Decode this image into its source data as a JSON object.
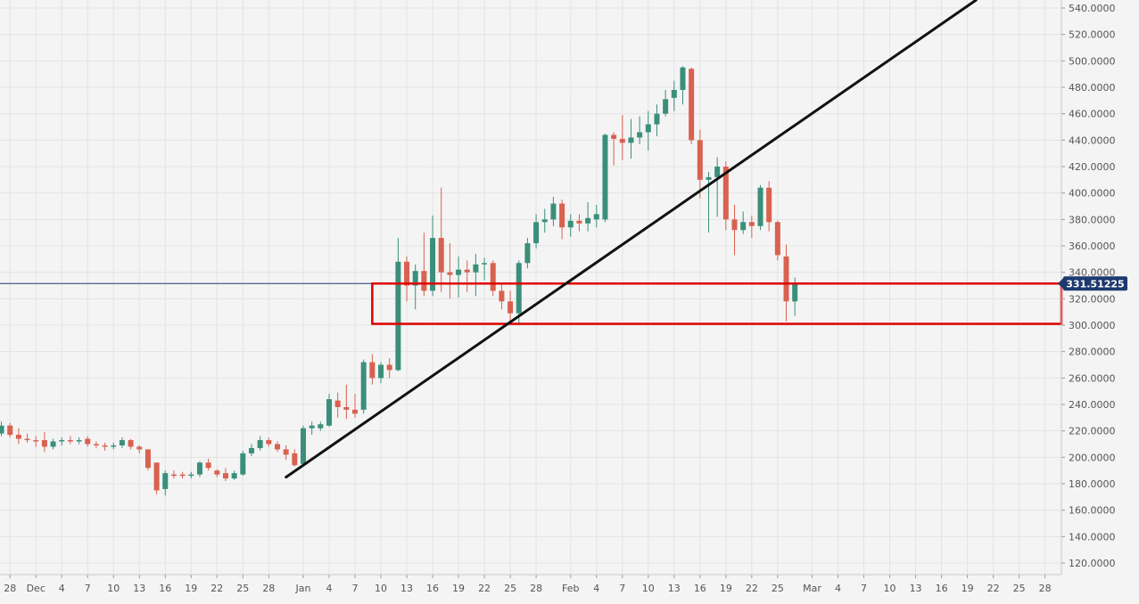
{
  "chart_data": {
    "type": "candlestick",
    "title": "",
    "xlabel": "",
    "ylabel": "",
    "ylim": [
      113,
      546
    ],
    "y_tick_values": [
      120,
      140,
      160,
      180,
      200,
      220,
      240,
      260,
      280,
      300,
      320,
      340,
      360,
      380,
      400,
      420,
      440,
      460,
      480,
      500,
      520,
      540
    ],
    "y_tick_labels": [
      "120.0000",
      "140.0000",
      "160.0000",
      "180.0000",
      "200.0000",
      "220.0000",
      "240.0000",
      "260.0000",
      "280.0000",
      "300.0000",
      "320.0000",
      "340.0000",
      "360.0000",
      "380.0000",
      "400.0000",
      "420.0000",
      "440.0000",
      "460.0000",
      "480.0000",
      "500.0000",
      "520.0000",
      "540.0000"
    ],
    "x_ticks": [
      {
        "date": "2020-11-28",
        "label": "28"
      },
      {
        "date": "2020-12-01",
        "label": "Dec"
      },
      {
        "date": "2020-12-04",
        "label": "4"
      },
      {
        "date": "2020-12-07",
        "label": "7"
      },
      {
        "date": "2020-12-10",
        "label": "10"
      },
      {
        "date": "2020-12-13",
        "label": "13"
      },
      {
        "date": "2020-12-16",
        "label": "16"
      },
      {
        "date": "2020-12-19",
        "label": "19"
      },
      {
        "date": "2020-12-22",
        "label": "22"
      },
      {
        "date": "2020-12-25",
        "label": "25"
      },
      {
        "date": "2020-12-28",
        "label": "28"
      },
      {
        "date": "2021-01-01",
        "label": "Jan"
      },
      {
        "date": "2021-01-04",
        "label": "4"
      },
      {
        "date": "2021-01-07",
        "label": "7"
      },
      {
        "date": "2021-01-10",
        "label": "10"
      },
      {
        "date": "2021-01-13",
        "label": "13"
      },
      {
        "date": "2021-01-16",
        "label": "16"
      },
      {
        "date": "2021-01-19",
        "label": "19"
      },
      {
        "date": "2021-01-22",
        "label": "22"
      },
      {
        "date": "2021-01-25",
        "label": "25"
      },
      {
        "date": "2021-01-28",
        "label": "28"
      },
      {
        "date": "2021-02-01",
        "label": "Feb"
      },
      {
        "date": "2021-02-04",
        "label": "4"
      },
      {
        "date": "2021-02-07",
        "label": "7"
      },
      {
        "date": "2021-02-10",
        "label": "10"
      },
      {
        "date": "2021-02-13",
        "label": "13"
      },
      {
        "date": "2021-02-16",
        "label": "16"
      },
      {
        "date": "2021-02-19",
        "label": "19"
      },
      {
        "date": "2021-02-22",
        "label": "22"
      },
      {
        "date": "2021-02-25",
        "label": "25"
      },
      {
        "date": "2021-03-01",
        "label": "Mar"
      },
      {
        "date": "2021-03-04",
        "label": "4"
      },
      {
        "date": "2021-03-07",
        "label": "7"
      },
      {
        "date": "2021-03-10",
        "label": "10"
      },
      {
        "date": "2021-03-13",
        "label": "13"
      },
      {
        "date": "2021-03-16",
        "label": "16"
      },
      {
        "date": "2021-03-19",
        "label": "19"
      },
      {
        "date": "2021-03-22",
        "label": "22"
      },
      {
        "date": "2021-03-25",
        "label": "25"
      },
      {
        "date": "2021-03-28",
        "label": "28"
      }
    ],
    "candles": [
      {
        "date": "2020-11-25",
        "open": 212,
        "high": 226,
        "low": 203,
        "close": 222
      },
      {
        "date": "2020-11-26",
        "open": 220,
        "high": 224,
        "low": 215,
        "close": 219
      },
      {
        "date": "2020-11-27",
        "open": 218,
        "high": 227,
        "low": 216,
        "close": 224
      },
      {
        "date": "2020-11-28",
        "open": 224,
        "high": 226,
        "low": 215,
        "close": 217
      },
      {
        "date": "2020-11-29",
        "open": 217,
        "high": 222,
        "low": 210,
        "close": 214
      },
      {
        "date": "2020-11-30",
        "open": 214,
        "high": 218,
        "low": 211,
        "close": 213
      },
      {
        "date": "2020-12-01",
        "open": 213,
        "high": 216,
        "low": 208,
        "close": 212
      },
      {
        "date": "2020-12-02",
        "open": 213,
        "high": 219,
        "low": 204,
        "close": 208
      },
      {
        "date": "2020-12-03",
        "open": 208,
        "high": 214,
        "low": 206,
        "close": 212
      },
      {
        "date": "2020-12-04",
        "open": 212,
        "high": 215,
        "low": 209,
        "close": 213
      },
      {
        "date": "2020-12-05",
        "open": 213,
        "high": 216,
        "low": 210,
        "close": 212
      },
      {
        "date": "2020-12-06",
        "open": 212,
        "high": 215,
        "low": 210,
        "close": 213
      },
      {
        "date": "2020-12-07",
        "open": 214,
        "high": 216,
        "low": 208,
        "close": 210
      },
      {
        "date": "2020-12-08",
        "open": 210,
        "high": 212,
        "low": 207,
        "close": 209
      },
      {
        "date": "2020-12-09",
        "open": 209,
        "high": 211,
        "low": 205,
        "close": 208
      },
      {
        "date": "2020-12-10",
        "open": 208,
        "high": 211,
        "low": 206,
        "close": 209
      },
      {
        "date": "2020-12-11",
        "open": 209,
        "high": 215,
        "low": 207,
        "close": 213
      },
      {
        "date": "2020-12-12",
        "open": 213,
        "high": 214,
        "low": 206,
        "close": 208
      },
      {
        "date": "2020-12-13",
        "open": 208,
        "high": 209,
        "low": 203,
        "close": 206
      },
      {
        "date": "2020-12-14",
        "open": 206,
        "high": 204,
        "low": 190,
        "close": 192
      },
      {
        "date": "2020-12-15",
        "open": 196,
        "high": 193,
        "low": 172,
        "close": 175
      },
      {
        "date": "2020-12-16",
        "open": 176,
        "high": 190,
        "low": 171,
        "close": 188
      },
      {
        "date": "2020-12-17",
        "open": 187,
        "high": 190,
        "low": 184,
        "close": 186
      },
      {
        "date": "2020-12-18",
        "open": 187,
        "high": 189,
        "low": 184,
        "close": 186
      },
      {
        "date": "2020-12-19",
        "open": 186,
        "high": 189,
        "low": 184,
        "close": 187
      },
      {
        "date": "2020-12-20",
        "open": 187,
        "high": 197,
        "low": 185,
        "close": 196
      },
      {
        "date": "2020-12-21",
        "open": 196,
        "high": 199,
        "low": 190,
        "close": 192
      },
      {
        "date": "2020-12-22",
        "open": 190,
        "high": 191,
        "low": 185,
        "close": 187
      },
      {
        "date": "2020-12-23",
        "open": 188,
        "high": 192,
        "low": 182,
        "close": 184
      },
      {
        "date": "2020-12-24",
        "open": 184,
        "high": 190,
        "low": 183,
        "close": 188
      },
      {
        "date": "2020-12-25",
        "open": 187,
        "high": 205,
        "low": 186,
        "close": 203
      },
      {
        "date": "2020-12-26",
        "open": 203,
        "high": 210,
        "low": 201,
        "close": 207
      },
      {
        "date": "2020-12-27",
        "open": 207,
        "high": 216,
        "low": 205,
        "close": 213
      },
      {
        "date": "2020-12-28",
        "open": 213,
        "high": 215,
        "low": 208,
        "close": 210
      },
      {
        "date": "2020-12-29",
        "open": 210,
        "high": 212,
        "low": 204,
        "close": 206
      },
      {
        "date": "2020-12-30",
        "open": 206,
        "high": 209,
        "low": 198,
        "close": 202
      },
      {
        "date": "2020-12-31",
        "open": 203,
        "high": 206,
        "low": 193,
        "close": 194
      },
      {
        "date": "2021-01-01",
        "open": 195,
        "high": 224,
        "low": 193,
        "close": 222
      },
      {
        "date": "2021-01-02",
        "open": 222,
        "high": 227,
        "low": 217,
        "close": 224
      },
      {
        "date": "2021-01-03",
        "open": 222,
        "high": 227,
        "low": 220,
        "close": 225
      },
      {
        "date": "2021-01-04",
        "open": 224,
        "high": 248,
        "low": 223,
        "close": 244
      },
      {
        "date": "2021-01-05",
        "open": 243,
        "high": 249,
        "low": 230,
        "close": 238
      },
      {
        "date": "2021-01-06",
        "open": 238,
        "high": 255,
        "low": 229,
        "close": 236
      },
      {
        "date": "2021-01-07",
        "open": 236,
        "high": 248,
        "low": 230,
        "close": 233
      },
      {
        "date": "2021-01-08",
        "open": 236,
        "high": 274,
        "low": 233,
        "close": 272
      },
      {
        "date": "2021-01-09",
        "open": 272,
        "high": 278,
        "low": 255,
        "close": 260
      },
      {
        "date": "2021-01-10",
        "open": 260,
        "high": 272,
        "low": 256,
        "close": 270
      },
      {
        "date": "2021-01-11",
        "open": 270,
        "high": 275,
        "low": 260,
        "close": 266
      },
      {
        "date": "2021-01-12",
        "open": 266,
        "high": 366,
        "low": 265,
        "close": 348
      },
      {
        "date": "2021-01-13",
        "open": 348,
        "high": 352,
        "low": 318,
        "close": 330
      },
      {
        "date": "2021-01-14",
        "open": 330,
        "high": 346,
        "low": 312,
        "close": 341
      },
      {
        "date": "2021-01-15",
        "open": 341,
        "high": 370,
        "low": 322,
        "close": 326
      },
      {
        "date": "2021-01-16",
        "open": 326,
        "high": 383,
        "low": 322,
        "close": 366
      },
      {
        "date": "2021-01-17",
        "open": 366,
        "high": 404,
        "low": 325,
        "close": 340
      },
      {
        "date": "2021-01-18",
        "open": 340,
        "high": 362,
        "low": 320,
        "close": 338
      },
      {
        "date": "2021-01-19",
        "open": 338,
        "high": 352,
        "low": 321,
        "close": 342
      },
      {
        "date": "2021-01-20",
        "open": 342,
        "high": 349,
        "low": 325,
        "close": 340
      },
      {
        "date": "2021-01-21",
        "open": 340,
        "high": 354,
        "low": 322,
        "close": 346
      },
      {
        "date": "2021-01-22",
        "open": 346,
        "high": 351,
        "low": 334,
        "close": 347
      },
      {
        "date": "2021-01-23",
        "open": 347,
        "high": 349,
        "low": 322,
        "close": 326
      },
      {
        "date": "2021-01-24",
        "open": 326,
        "high": 331,
        "low": 312,
        "close": 318
      },
      {
        "date": "2021-01-25",
        "open": 318,
        "high": 326,
        "low": 303,
        "close": 309
      },
      {
        "date": "2021-01-26",
        "open": 309,
        "high": 349,
        "low": 302,
        "close": 347
      },
      {
        "date": "2021-01-27",
        "open": 347,
        "high": 366,
        "low": 343,
        "close": 362
      },
      {
        "date": "2021-01-28",
        "open": 362,
        "high": 384,
        "low": 358,
        "close": 378
      },
      {
        "date": "2021-01-29",
        "open": 378,
        "high": 388,
        "low": 370,
        "close": 380
      },
      {
        "date": "2021-01-30",
        "open": 380,
        "high": 397,
        "low": 375,
        "close": 392
      },
      {
        "date": "2021-01-31",
        "open": 392,
        "high": 395,
        "low": 365,
        "close": 374
      },
      {
        "date": "2021-02-01",
        "open": 374,
        "high": 384,
        "low": 367,
        "close": 379
      },
      {
        "date": "2021-02-02",
        "open": 379,
        "high": 384,
        "low": 371,
        "close": 377
      },
      {
        "date": "2021-02-03",
        "open": 377,
        "high": 393,
        "low": 371,
        "close": 381
      },
      {
        "date": "2021-02-04",
        "open": 380,
        "high": 391,
        "low": 374,
        "close": 384
      },
      {
        "date": "2021-02-05",
        "open": 380,
        "high": 445,
        "low": 378,
        "close": 444
      },
      {
        "date": "2021-02-06",
        "open": 444,
        "high": 446,
        "low": 421,
        "close": 441
      },
      {
        "date": "2021-02-07",
        "open": 441,
        "high": 459,
        "low": 425,
        "close": 438
      },
      {
        "date": "2021-02-08",
        "open": 438,
        "high": 456,
        "low": 426,
        "close": 442
      },
      {
        "date": "2021-02-09",
        "open": 442,
        "high": 458,
        "low": 437,
        "close": 446
      },
      {
        "date": "2021-02-10",
        "open": 446,
        "high": 462,
        "low": 432,
        "close": 452
      },
      {
        "date": "2021-02-11",
        "open": 452,
        "high": 467,
        "low": 443,
        "close": 460
      },
      {
        "date": "2021-02-12",
        "open": 460,
        "high": 478,
        "low": 458,
        "close": 471
      },
      {
        "date": "2021-02-13",
        "open": 472,
        "high": 485,
        "low": 462,
        "close": 478
      },
      {
        "date": "2021-02-14",
        "open": 478,
        "high": 496,
        "low": 467,
        "close": 495
      },
      {
        "date": "2021-02-15",
        "open": 494,
        "high": 495,
        "low": 437,
        "close": 440
      },
      {
        "date": "2021-02-16",
        "open": 440,
        "high": 448,
        "low": 396,
        "close": 410
      },
      {
        "date": "2021-02-17",
        "open": 410,
        "high": 416,
        "low": 370,
        "close": 412
      },
      {
        "date": "2021-02-18",
        "open": 412,
        "high": 427,
        "low": 382,
        "close": 420
      },
      {
        "date": "2021-02-19",
        "open": 420,
        "high": 424,
        "low": 372,
        "close": 380
      },
      {
        "date": "2021-02-20",
        "open": 380,
        "high": 391,
        "low": 353,
        "close": 372
      },
      {
        "date": "2021-02-21",
        "open": 372,
        "high": 386,
        "low": 369,
        "close": 378
      },
      {
        "date": "2021-02-22",
        "open": 378,
        "high": 383,
        "low": 366,
        "close": 375
      },
      {
        "date": "2021-02-23",
        "open": 375,
        "high": 406,
        "low": 372,
        "close": 404
      },
      {
        "date": "2021-02-24",
        "open": 404,
        "high": 409,
        "low": 371,
        "close": 378
      },
      {
        "date": "2021-02-25",
        "open": 378,
        "high": 379,
        "low": 349,
        "close": 353
      },
      {
        "date": "2021-02-26",
        "open": 352,
        "high": 361,
        "low": 303,
        "close": 318
      },
      {
        "date": "2021-02-27",
        "open": 318,
        "high": 336,
        "low": 307,
        "close": 331.51225
      }
    ],
    "last_price": 331.51225,
    "last_price_label": "331.51225",
    "trendline": {
      "start": {
        "date": "2020-12-30",
        "price": 185
      },
      "end": {
        "date": "2021-03-20",
        "price": 546
      }
    },
    "support_zone": {
      "from_date": "2021-01-09",
      "to_date": "2021-03-30",
      "low": 301,
      "high": 331.5
    },
    "grid": true,
    "colors": {
      "up": "#3a8f7a",
      "down": "#d9614f",
      "trendline": "#111111",
      "zone": "#e00000",
      "price_line": "#1d3a6e",
      "price_tag": "#1d3a6e",
      "grid": "#e3e3e3",
      "background": "#f4f4f4",
      "axis_text": "#555555"
    }
  }
}
